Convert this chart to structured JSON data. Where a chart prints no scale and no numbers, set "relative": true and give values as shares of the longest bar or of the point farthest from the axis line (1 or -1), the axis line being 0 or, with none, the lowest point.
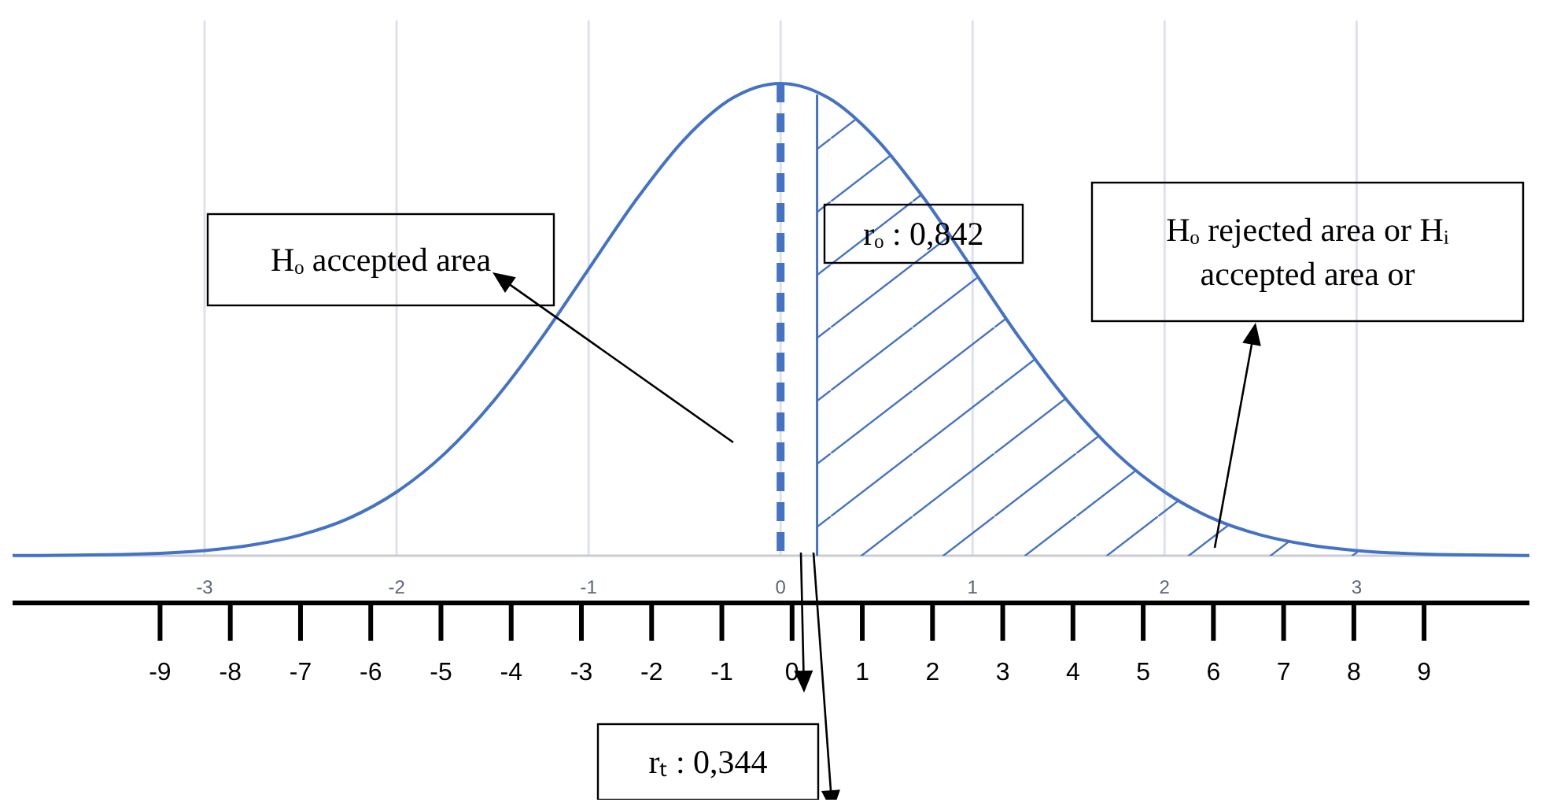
{
  "chart_data": {
    "type": "line",
    "relative": true,
    "x": [
      -4,
      -3.5,
      -3,
      -2.75,
      -2.5,
      -2.25,
      -2,
      -1.75,
      -1.5,
      -1.25,
      -1,
      -0.75,
      -0.5,
      -0.25,
      0,
      0.25,
      0.5,
      0.75,
      1,
      1.25,
      1.5,
      1.75,
      2,
      2.25,
      2.5,
      2.75,
      3,
      3.5,
      3.9
    ],
    "series": [
      {
        "color": "#4472c4",
        "values": [
          0.0003,
          0.002,
          0.011,
          0.023,
          0.044,
          0.079,
          0.135,
          0.216,
          0.325,
          0.458,
          0.607,
          0.755,
          0.882,
          0.969,
          1,
          0.969,
          0.882,
          0.755,
          0.607,
          0.458,
          0.325,
          0.216,
          0.135,
          0.079,
          0.044,
          0.023,
          0.011,
          0.002,
          0.0005
        ]
      },
      {
        "type": "area",
        "color": "#4472c4",
        "x": [
          0.19,
          0.25,
          0.5,
          0.75,
          1,
          1.25,
          1.5,
          1.75,
          2,
          2.25,
          2.5,
          2.75,
          3,
          3.5,
          3.9
        ],
        "values": [
          0.982,
          0.969,
          0.882,
          0.755,
          0.607,
          0.458,
          0.325,
          0.216,
          0.135,
          0.079,
          0.044,
          0.023,
          0.011,
          0.002,
          0.0005
        ]
      }
    ],
    "xlim": [
      -4,
      3.9
    ],
    "xticks": [
      -3,
      -2,
      -1,
      0,
      1,
      2,
      3
    ],
    "x2lim": [
      -11.1,
      10.5
    ],
    "x2ticks": [
      -9,
      -8,
      -7,
      -6,
      -5,
      -4,
      -3,
      -2,
      -1,
      0,
      1,
      2,
      3,
      4,
      5,
      6,
      7,
      8,
      9
    ],
    "grid": "x",
    "marker": "none",
    "line_style": "solid",
    "ref_lines": [
      {
        "axis": "x",
        "value": 0,
        "line_style": "dashed",
        "color": "#4472c4"
      },
      {
        "axis": "x",
        "value": 0.19,
        "line_style": "solid",
        "color": "#4472c4"
      }
    ],
    "annotations": [
      "Hₒ accepted area",
      "rₒ : 0,842",
      "Hₒ rejected area or Hᵢ accepted area or",
      "rₜ : 0,344"
    ]
  }
}
